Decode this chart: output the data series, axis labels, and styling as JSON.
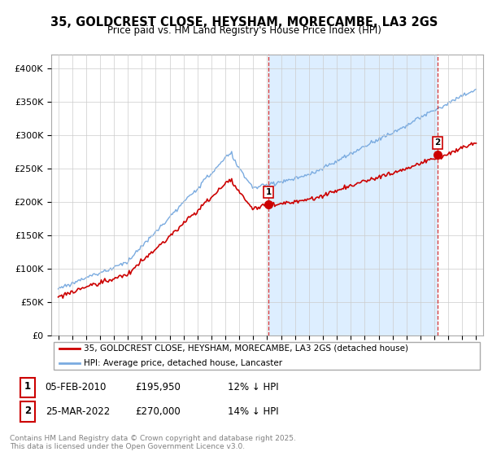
{
  "title": "35, GOLDCREST CLOSE, HEYSHAM, MORECAMBE, LA3 2GS",
  "subtitle": "Price paid vs. HM Land Registry's House Price Index (HPI)",
  "legend_line1": "35, GOLDCREST CLOSE, HEYSHAM, MORECAMBE, LA3 2GS (detached house)",
  "legend_line2": "HPI: Average price, detached house, Lancaster",
  "annotation1_date": "05-FEB-2010",
  "annotation1_price": "£195,950",
  "annotation1_hpi": "12% ↓ HPI",
  "annotation2_date": "25-MAR-2022",
  "annotation2_price": "£270,000",
  "annotation2_hpi": "14% ↓ HPI",
  "footer": "Contains HM Land Registry data © Crown copyright and database right 2025.\nThis data is licensed under the Open Government Licence v3.0.",
  "red_color": "#cc0000",
  "blue_color": "#7aabe0",
  "shade_color": "#ddeeff",
  "background_color": "#ffffff",
  "grid_color": "#cccccc",
  "ylim": [
    0,
    420000
  ],
  "yticks": [
    0,
    50000,
    100000,
    150000,
    200000,
    250000,
    300000,
    350000,
    400000
  ],
  "marker1_x": 2010.09,
  "marker1_y": 195950,
  "marker2_x": 2022.23,
  "marker2_y": 270000,
  "xlim_left": 1994.5,
  "xlim_right": 2025.5
}
